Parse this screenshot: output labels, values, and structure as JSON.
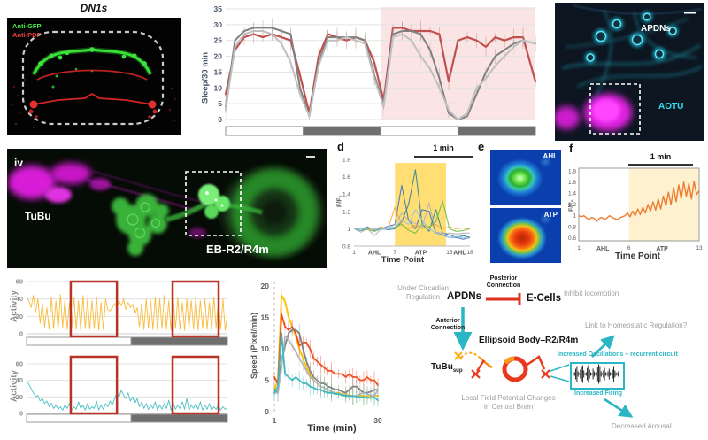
{
  "panel_a": {
    "title": "DN1s",
    "stain1": "Anti-GFP",
    "stain2": "Anti-PDF"
  },
  "panel_b": {
    "ylabel": "Sleep/30 min"
  },
  "panel_c": {
    "label_top": "APDNs",
    "label_bottom": "AOTU"
  },
  "panel_iv": {
    "index": "iv",
    "label_left": "TuBu",
    "label_right": "EB-R2/R4m"
  },
  "panel_d": {
    "index": "d",
    "scalebar": "1 min",
    "ylabel": "F/F₀",
    "xlabel": "Time Point"
  },
  "panel_e": {
    "index": "e",
    "img1_label": "AHL",
    "img2_label": "ATP"
  },
  "panel_f": {
    "index": "f",
    "scalebar": "1 min",
    "ylabel": "F/F₀",
    "xlabel": "Time Point"
  },
  "panel_g": {
    "ylabel1": "Activity",
    "ylabel2": "Activity"
  },
  "panel_h": {
    "ylabel": "Speed (Pixel/min)",
    "xlabel": "Time (min)"
  },
  "diagram": {
    "under_circadian": "Under Circadian Regulation",
    "apdns": "APDNs",
    "posterior": "Posterior Connection",
    "ecells": "E-Cells",
    "inhibit": "Inhibit locomotion",
    "anterior": "Anterior Connection",
    "eb": "Ellipsoid Body–R2/R4m",
    "link": "Link to Homeostatic Regulation?",
    "oscillations": "Increased Oscillations – recurrent circuit",
    "tubu": "TuBu",
    "tubu_sub": "sup",
    "lfp": "Local Field Potential Changes In Central Brain",
    "firing": "Increased Firing",
    "arousal": "Decreased Arousal",
    "colors": {
      "teal": "#2ab6c4",
      "red": "#e0301e",
      "orange": "#ffb020",
      "gray": "#9d9d9d"
    }
  },
  "chart_data": {
    "sleep": {
      "type": "line",
      "ylabel": "Sleep/30 min",
      "ylim": [
        0,
        35
      ],
      "yticks": [
        0,
        5,
        10,
        15,
        20,
        25,
        30,
        35
      ],
      "x_percent": [
        0,
        3,
        6,
        9,
        12,
        15,
        18,
        21,
        24,
        27,
        30,
        33,
        36,
        39,
        42,
        45,
        48,
        51,
        54,
        57,
        60,
        63,
        66,
        69,
        72,
        75,
        78,
        81,
        84,
        87,
        90,
        93,
        96,
        100
      ],
      "shaded": {
        "from": 50,
        "to": 100,
        "color": "#fbe5e4"
      },
      "photoperiod": [
        "L",
        "D",
        "L",
        "D"
      ],
      "series": [
        {
          "name": "experimental",
          "color": "#c0504d",
          "width": 2.2,
          "values": [
            8,
            22,
            26,
            27,
            26,
            27,
            26,
            25,
            14,
            2,
            20,
            27,
            26,
            25,
            26,
            25,
            18,
            6,
            29,
            29,
            28,
            28,
            28,
            27,
            12,
            25,
            26,
            25,
            23,
            26,
            25,
            26,
            26,
            12
          ]
        },
        {
          "name": "control-dark-gray",
          "color": "#7f7f7f",
          "width": 2,
          "values": [
            4,
            25,
            28,
            29,
            29,
            29,
            28,
            27,
            10,
            1,
            18,
            26,
            26,
            26,
            26,
            25,
            14,
            5,
            27,
            28,
            28,
            27,
            22,
            13,
            2,
            0,
            1,
            8,
            15,
            20,
            22,
            24,
            25,
            24
          ]
        },
        {
          "name": "control-light-gray",
          "color": "#bfbfbf",
          "width": 2,
          "values": [
            3,
            23,
            27,
            28,
            28,
            27,
            24,
            18,
            8,
            1,
            17,
            25,
            25,
            26,
            25,
            24,
            13,
            4,
            26,
            27,
            25,
            20,
            16,
            10,
            3,
            0,
            2,
            10,
            13,
            17,
            20,
            23,
            25,
            24
          ]
        }
      ]
    },
    "panel_d": {
      "type": "line",
      "xlabel": "Time Point",
      "ylabel": "F/F0",
      "ylim": [
        0.8,
        1.8
      ],
      "yticks": [
        0.8,
        1,
        1.2,
        1.4,
        1.6,
        1.8
      ],
      "xticks": [
        1,
        7,
        15,
        18
      ],
      "x": [
        1,
        2,
        3,
        4,
        5,
        6,
        7,
        8,
        9,
        10,
        11,
        12,
        13,
        14,
        15,
        16,
        17,
        18
      ],
      "shade": {
        "from": 7,
        "to": 14.5,
        "color": "#ffdf73"
      },
      "phase_labels": [
        {
          "text": "AHL",
          "at": 4
        },
        {
          "text": "ATP",
          "at": 10.8
        },
        {
          "text": "AHL",
          "at": 16.5
        }
      ],
      "scalebar": "1 min",
      "series": [
        {
          "name": "cell1-blue",
          "color": "#4472c4",
          "values": [
            1,
            1,
            1.02,
            0.98,
            1,
            1.03,
            1.05,
            1.5,
            1.1,
            1,
            1.22,
            1.2,
            0.95,
            0.93,
            0.9,
            0.9,
            0.88,
            0.9
          ]
        },
        {
          "name": "cell2-steel",
          "color": "#31869b",
          "values": [
            1,
            0.98,
            1,
            1.01,
            1,
            0.99,
            1,
            1.08,
            1.28,
            1.68,
            1.05,
            0.97,
            1.22,
            0.95,
            0.93,
            0.9,
            0.92,
            0.9
          ]
        },
        {
          "name": "cell3-orange",
          "color": "#ffa930",
          "values": [
            1,
            1.01,
            0.99,
            1,
            1.02,
            1,
            1.25,
            1.05,
            1,
            1.04,
            1,
            1.02,
            1.05,
            1,
            1.02,
            1,
            1.01,
            1
          ]
        },
        {
          "name": "cell4-green",
          "color": "#6abf4b",
          "values": [
            1,
            1,
            0.99,
            0.97,
            1,
            1,
            1.02,
            1.05,
            0.98,
            0.95,
            1.05,
            1.02,
            1.08,
            1.32,
            1,
            0.97,
            0.98,
            1
          ]
        },
        {
          "name": "cell5-gray",
          "color": "#b0b0b0",
          "values": [
            1,
            0.96,
            1,
            0.92,
            1,
            1,
            1.05,
            1.18,
            1.1,
            1.06,
            1.02,
            1.3,
            0.96,
            0.95,
            0.95,
            0.94,
            0.95,
            0.95
          ]
        },
        {
          "name": "cell6-lightblue",
          "color": "#9dc3e6",
          "values": [
            1,
            1,
            1.01,
            1,
            0.99,
            1,
            1.02,
            1.1,
            1.05,
            1.22,
            1.1,
            1,
            0.95,
            0.92,
            0.9,
            0.91,
            0.9,
            0.89
          ]
        }
      ]
    },
    "panel_f": {
      "type": "line",
      "xlabel": "Time Point",
      "ylabel": "F/F0",
      "ylim": [
        0.6,
        1.8
      ],
      "yticks": [
        0.6,
        0.8,
        1,
        1.2,
        1.4,
        1.6,
        1.8
      ],
      "xticks": [
        1,
        6,
        13
      ],
      "x_range": [
        1,
        13
      ],
      "shade": {
        "from": 6,
        "to": 13,
        "color": "#fdf1cf"
      },
      "phase_labels": [
        {
          "text": "AHL",
          "at": 3.4
        },
        {
          "text": "ATP",
          "at": 9.3
        }
      ],
      "scalebar": "1 min",
      "color": "#ed7d31",
      "values": [
        1,
        0.98,
        1,
        0.96,
        0.93,
        0.97,
        0.95,
        0.9,
        0.95,
        0.97,
        0.93,
        0.96,
        1,
        0.97,
        0.95,
        0.93,
        0.96,
        0.98,
        1,
        1.05,
        0.98,
        1.08,
        1,
        1.12,
        1.02,
        1.15,
        1.05,
        1.2,
        1.08,
        1.25,
        1.1,
        1.3,
        1.12,
        1.35,
        1.18,
        1.42,
        1.2,
        1.5,
        1.25,
        1.55,
        1.3,
        1.6,
        1.35,
        1.58,
        1.3,
        1.62,
        1.38,
        1.45
      ]
    },
    "activity": [
      {
        "name": "activity-orange",
        "ylabel": "Activity",
        "color": "#f8bc3c",
        "ylim": [
          0,
          60
        ],
        "yticks": [
          0,
          20,
          40,
          60
        ],
        "photoperiod_split": 0.52,
        "box_color": "#b63325",
        "highlight_boxes": [
          [
            0.22,
            0.45
          ],
          [
            0.727,
            0.956
          ]
        ],
        "values": [
          42,
          38,
          30,
          44,
          25,
          40,
          12,
          35,
          8,
          30,
          5,
          42,
          6,
          38,
          4,
          45,
          7,
          40,
          5,
          36,
          6,
          42,
          5,
          38,
          4,
          44,
          6,
          40,
          5,
          38,
          6,
          42,
          4,
          36,
          5,
          40,
          28,
          26,
          30,
          35,
          30,
          38,
          32,
          40,
          28,
          36,
          30,
          34,
          22,
          30,
          8,
          35,
          5,
          40,
          6,
          38,
          5,
          42,
          4,
          40,
          6,
          44,
          5,
          38,
          4,
          40,
          6,
          42,
          5,
          36,
          4,
          40,
          6,
          38,
          5,
          42,
          4,
          38,
          6,
          40,
          5,
          36,
          4,
          42,
          6,
          38,
          5,
          40,
          4,
          20
        ]
      },
      {
        "name": "activity-cyan",
        "ylabel": "Activity",
        "color": "#4bbfc4",
        "ylim": [
          0,
          60
        ],
        "yticks": [
          0,
          20,
          40,
          60
        ],
        "photoperiod_split": 0.52,
        "box_color": "#b63325",
        "highlight_boxes": [
          [
            0.22,
            0.45
          ],
          [
            0.727,
            0.956
          ]
        ],
        "values": [
          40,
          35,
          30,
          25,
          20,
          22,
          15,
          18,
          12,
          15,
          8,
          12,
          6,
          10,
          5,
          8,
          4,
          10,
          6,
          12,
          4,
          8,
          5,
          14,
          6,
          10,
          4,
          12,
          5,
          8,
          6,
          15,
          4,
          10,
          5,
          12,
          8,
          15,
          10,
          18,
          25,
          20,
          28,
          22,
          18,
          25,
          15,
          20,
          12,
          18,
          8,
          14,
          6,
          12,
          5,
          10,
          6,
          14,
          4,
          10,
          5,
          12,
          6,
          16,
          4,
          12,
          5,
          10,
          6,
          14,
          5,
          18,
          4,
          10,
          6,
          12,
          5,
          14,
          4,
          10,
          5,
          12,
          4,
          8,
          5,
          10,
          4,
          8,
          5,
          6
        ]
      }
    ],
    "speed": {
      "type": "line",
      "xlabel": "Time (min)",
      "ylabel": "Speed (Pixel/min)",
      "ylim": [
        0,
        20
      ],
      "yticks": [
        0,
        5,
        10,
        15,
        20
      ],
      "xticks": [
        1,
        30
      ],
      "x_range": [
        1,
        30
      ],
      "series": [
        {
          "name": "yellow",
          "color": "#ffc000",
          "values": [
            3.5,
            5,
            18.5,
            17.5,
            15,
            13.5,
            12,
            10,
            8.5,
            7,
            6,
            5,
            4.5,
            4,
            3.8,
            3.5,
            3.2,
            3,
            3,
            2.8,
            2.8,
            2.6,
            2.5,
            2.5,
            2.6,
            2.5,
            2.4,
            2.5,
            2.6,
            2.5
          ]
        },
        {
          "name": "red",
          "color": "#f04e23",
          "values": [
            5.5,
            4.5,
            15.5,
            13.5,
            13,
            13.5,
            12.5,
            10.5,
            11,
            11,
            10,
            8.5,
            8,
            7.5,
            7,
            6.5,
            6.5,
            6,
            6,
            6,
            5.5,
            6,
            5.5,
            5.5,
            5,
            5,
            5.5,
            5,
            5,
            4.2
          ]
        },
        {
          "name": "dark-gray",
          "color": "#808080",
          "values": [
            3.5,
            3,
            8,
            10.5,
            12.5,
            13,
            13,
            12.5,
            10,
            8,
            6.5,
            5.5,
            5,
            4.5,
            4.5,
            4,
            3.8,
            3.5,
            3.5,
            3.2,
            3,
            3.5,
            4,
            4,
            3.5,
            3,
            3,
            3.2,
            3.5,
            3.5
          ]
        },
        {
          "name": "light-gray",
          "color": "#b7b7b7",
          "values": [
            3,
            3,
            7,
            12,
            11.5,
            10.5,
            9.5,
            8.5,
            7.5,
            6.5,
            5.5,
            5,
            4.5,
            4,
            3.8,
            3.5,
            3.2,
            3,
            2.8,
            2.8,
            2.6,
            2.5,
            2.5,
            2.5,
            2.8,
            3,
            2.8,
            2.6,
            2.5,
            3.5
          ]
        },
        {
          "name": "cyan",
          "color": "#3fb8bd",
          "values": [
            3,
            4,
            12.5,
            6,
            5.5,
            5,
            5.5,
            5,
            4.5,
            4.5,
            4,
            3.8,
            3.5,
            3.5,
            3.2,
            3,
            3,
            2.8,
            2.8,
            2.6,
            2.5,
            2.5,
            2.5,
            2.4,
            2.3,
            2.3,
            2.2,
            2.2,
            2.3,
            1.8
          ]
        }
      ]
    }
  }
}
